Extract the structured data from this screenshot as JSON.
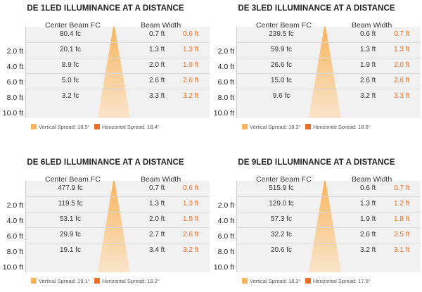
{
  "colors": {
    "vertical": "#f7b45c",
    "horizontal": "#e8702a",
    "card": "#f1f1f1"
  },
  "headers": {
    "fc": "Center Beam FC",
    "bw": "Beam Width"
  },
  "legend": {
    "vertical_prefix": "Vertical Spread: ",
    "horizontal_prefix": "Horizontal Spread: "
  },
  "chart_data": [
    {
      "type": "table",
      "title": "DE 1LED ILLUMINANCE AT A DISTANCE",
      "distances": [
        "2.0 ft",
        "4.0 ft",
        "6.0 ft",
        "8.0 ft",
        "10.0 ft"
      ],
      "center_beam_fc": [
        "80.4 fc",
        "20.1 fc",
        "8.9 fc",
        "5.0 fc",
        "3.2 fc"
      ],
      "beam_width_vertical": [
        "0.7 ft",
        "1.3 ft",
        "2.0 ft",
        "2.6 ft",
        "3.3 ft"
      ],
      "beam_width_horizontal": [
        "0.6 ft",
        "1.3 ft",
        "1.9 ft",
        "2.6 ft",
        "3.2 ft"
      ],
      "vertical_spread": "18.5°",
      "horizontal_spread": "18.4°"
    },
    {
      "type": "table",
      "title": "DE 3LED ILLUMINANCE AT A DISTANCE",
      "distances": [
        "2.0 ft",
        "4.0 ft",
        "6.0 ft",
        "8.0 ft",
        "10.0 ft"
      ],
      "center_beam_fc": [
        "239.5 fc",
        "59.9 fc",
        "26.6 fc",
        "15.0 fc",
        "9.6 fc"
      ],
      "beam_width_vertical": [
        "0.6 ft",
        "1.3 ft",
        "1.9 ft",
        "2.6 ft",
        "3.2 ft"
      ],
      "beam_width_horizontal": [
        "0.7 ft",
        "1.3 ft",
        "2.0 ft",
        "2.6 ft",
        "3.3 ft"
      ],
      "vertical_spread": "18.3°",
      "horizontal_spread": "18.6°"
    },
    {
      "type": "table",
      "title": "DE 6LED ILLUMINANCE AT A DISTANCE",
      "distances": [
        "2.0 ft",
        "4.0 ft",
        "6.0 ft",
        "8.0 ft",
        "10.0 ft"
      ],
      "center_beam_fc": [
        "477.9 fc",
        "119.5 fc",
        "53.1 fc",
        "29.9 fc",
        "19.1 fc"
      ],
      "beam_width_vertical": [
        "0.7 ft",
        "1.3 ft",
        "2.0 ft",
        "2.7 ft",
        "3.4 ft"
      ],
      "beam_width_horizontal": [
        "0.6 ft",
        "1.3 ft",
        "1.9 ft",
        "2.6 ft",
        "3.2 ft"
      ],
      "vertical_spread": "19.1°",
      "horizontal_spread": "18.2°"
    },
    {
      "type": "table",
      "title": "DE 9LED ILLUMINANCE AT A DISTANCE",
      "distances": [
        "2.0 ft",
        "4.0 ft",
        "6.0 ft",
        "8.0 ft",
        "10.0 ft"
      ],
      "center_beam_fc": [
        "515.9 fc",
        "129.0 fc",
        "57.3 fc",
        "32.2 fc",
        "20.6 fc"
      ],
      "beam_width_vertical": [
        "0.6 ft",
        "1.3 ft",
        "1.9 ft",
        "2.6 ft",
        "3.2 ft"
      ],
      "beam_width_horizontal": [
        "0.7 ft",
        "1.2 ft",
        "1.8 ft",
        "2.5 ft",
        "3.1 ft"
      ],
      "vertical_spread": "18.3°",
      "horizontal_spread": "17.5°"
    }
  ]
}
